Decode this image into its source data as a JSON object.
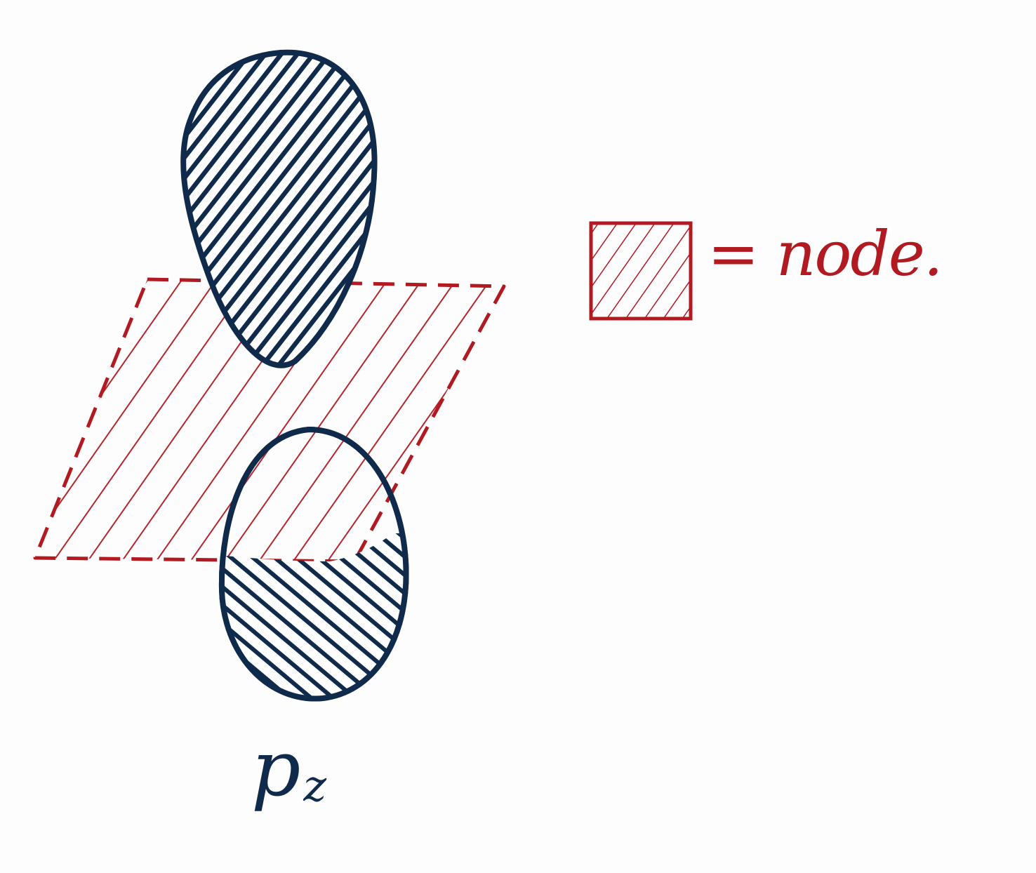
{
  "legend": {
    "text": "= node."
  },
  "orbital": {
    "symbol": "p",
    "subscript": "z"
  },
  "colors": {
    "node_red": "#b21a22",
    "lobe_navy": "#0f2a4a",
    "paper": "#fdfdfd"
  }
}
